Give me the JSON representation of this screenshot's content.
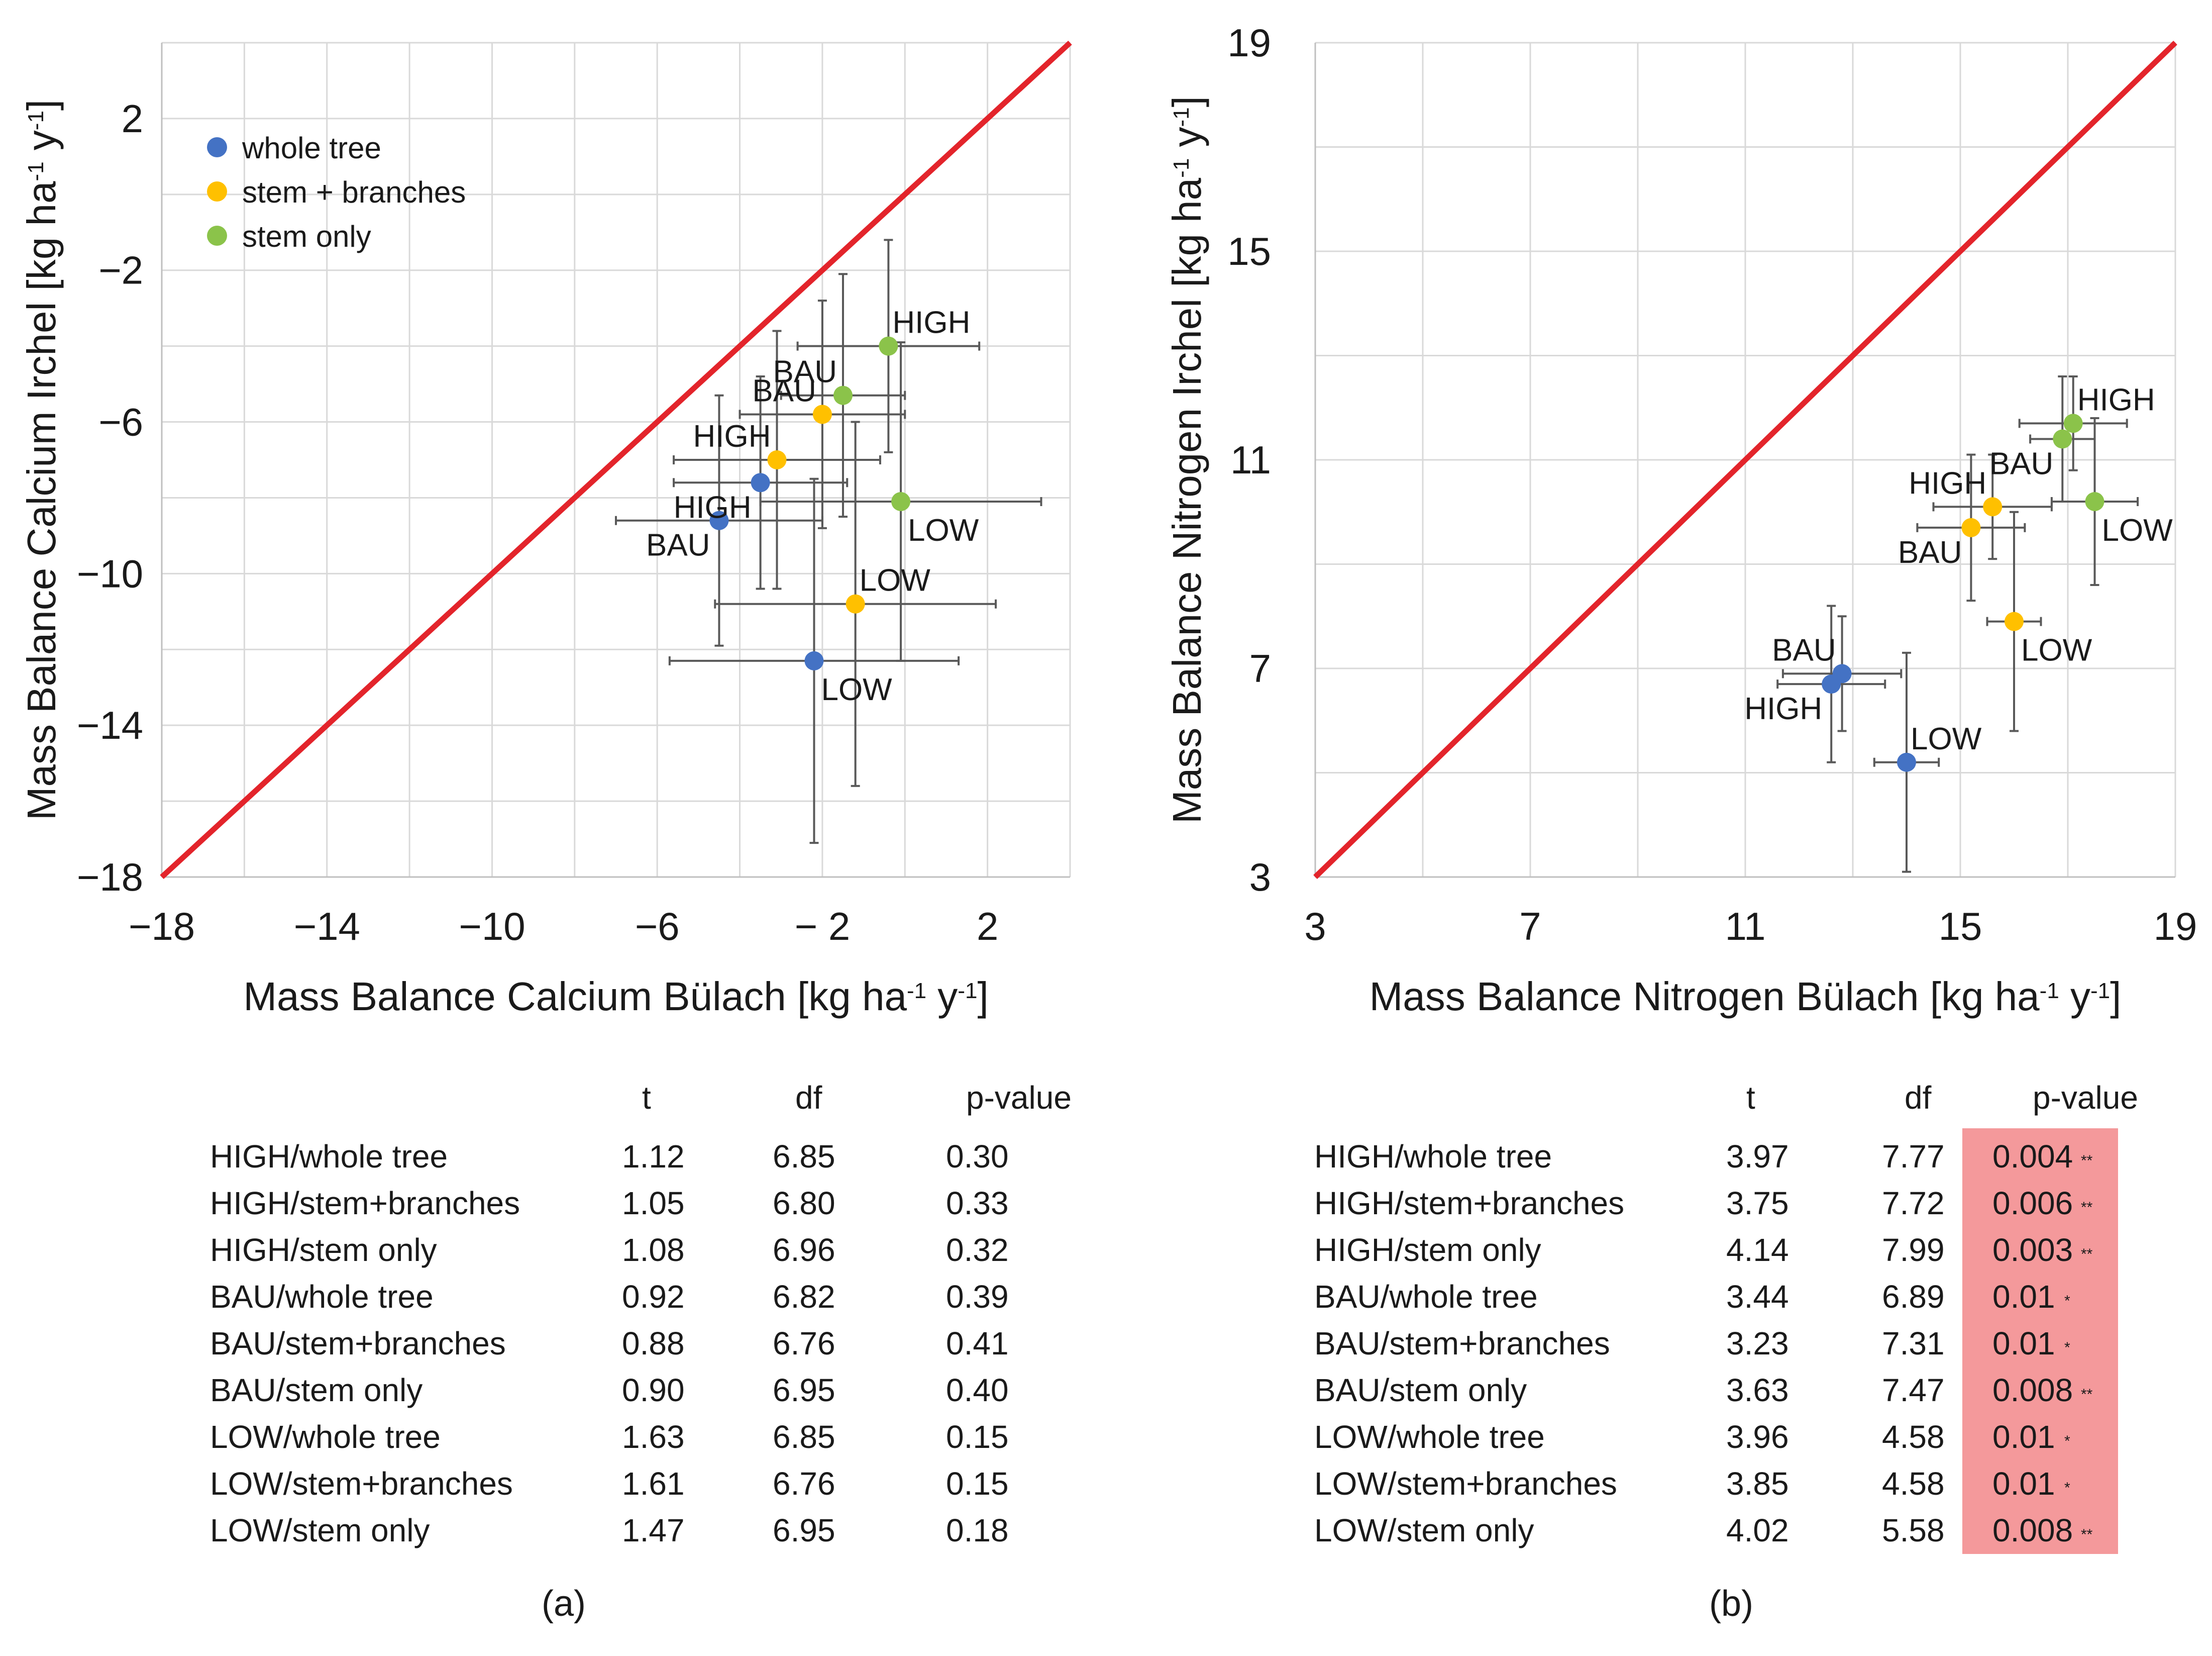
{
  "chart_data": [
    {
      "type": "scatter",
      "panel": "(a)",
      "title": "",
      "xlabel": "Mass Balance Calcium Bülach [kg ha-1 y-1]",
      "ylabel": "Mass Balance Calcium Irchel [kg ha-1 y-1]",
      "xlabel_parts": [
        "Mass Balance Calcium Bülach [kg ha",
        "-1",
        " y",
        "-1",
        "]"
      ],
      "ylabel_parts": [
        "Mass Balance Calcium Irchel [kg ha",
        "-1",
        " y",
        "-1",
        "]"
      ],
      "xlim": [
        -18,
        4
      ],
      "ylim": [
        -18,
        4
      ],
      "xticks": [
        -18,
        -14,
        -10,
        -6,
        -2,
        2
      ],
      "xtick_labels": [
        "−18",
        "−14",
        "−10",
        "−6",
        "− 2",
        "2"
      ],
      "yticks": [
        -18,
        -14,
        -10,
        -6,
        -2,
        2
      ],
      "ytick_labels": [
        "−18",
        "−14",
        "−10",
        "−6",
        "−2",
        "2"
      ],
      "grid": true,
      "reference_line": "1:1 line",
      "legend": {
        "position": "top-left",
        "entries": [
          {
            "label": "whole tree",
            "color": "#4472c4"
          },
          {
            "label": "stem + branches",
            "color": "#ffc000"
          },
          {
            "label": "stem only",
            "color": "#8bc34a"
          }
        ]
      },
      "series": [
        {
          "name": "whole tree",
          "color": "#4472c4",
          "points": [
            {
              "label": "BAU",
              "x": -4.5,
              "y": -8.6,
              "xerr": 2.5,
              "yerr": 3.3,
              "label_pos": "below-left"
            },
            {
              "label": "HIGH",
              "x": -3.5,
              "y": -7.6,
              "xerr": 2.1,
              "yerr": 2.8,
              "label_pos": "below-left"
            },
            {
              "label": "LOW",
              "x": -2.2,
              "y": -12.3,
              "xerr": 3.5,
              "yerr": 4.8,
              "label_pos": "below-right"
            }
          ]
        },
        {
          "name": "stem + branches",
          "color": "#ffc000",
          "points": [
            {
              "label": "HIGH",
              "x": -3.1,
              "y": -7.0,
              "xerr": 2.5,
              "yerr": 3.4,
              "label_pos": "above-left"
            },
            {
              "label": "BAU",
              "x": -2.0,
              "y": -5.8,
              "xerr": 2.0,
              "yerr": 3.0,
              "label_pos": "above-left"
            },
            {
              "label": "LOW",
              "x": -1.2,
              "y": -10.8,
              "xerr": 3.4,
              "yerr": 4.8,
              "label_pos": "above-right"
            }
          ]
        },
        {
          "name": "stem only",
          "color": "#8bc34a",
          "points": [
            {
              "label": "BAU",
              "x": -1.5,
              "y": -5.3,
              "xerr": 1.5,
              "yerr": 3.2,
              "label_pos": "above-left"
            },
            {
              "label": "HIGH",
              "x": -0.4,
              "y": -4.0,
              "xerr": 2.2,
              "yerr": 2.8,
              "label_pos": "above-right"
            },
            {
              "label": "LOW",
              "x": -0.1,
              "y": -8.1,
              "xerr": 3.4,
              "yerr": 4.2,
              "label_pos": "below-right"
            }
          ]
        }
      ]
    },
    {
      "type": "scatter",
      "panel": "(b)",
      "title": "",
      "xlabel": "Mass Balance Nitrogen Bülach [kg ha-1 y-1]",
      "ylabel": "Mass Balance Nitrogen Irchel [kg ha-1 y-1]",
      "xlabel_parts": [
        "Mass Balance Nitrogen Bülach [kg ha",
        "-1",
        " y",
        "-1",
        "]"
      ],
      "ylabel_parts": [
        "Mass Balance Nitrogen Irchel [kg ha",
        "-1",
        " y",
        "-1",
        "]"
      ],
      "xlim": [
        3,
        19
      ],
      "ylim": [
        3,
        19
      ],
      "xticks": [
        3,
        7,
        11,
        15,
        19
      ],
      "xtick_labels": [
        "3",
        "7",
        "11",
        "15",
        "19"
      ],
      "yticks": [
        3,
        7,
        11,
        15,
        19
      ],
      "ytick_labels": [
        "3",
        "7",
        "11",
        "15",
        "19"
      ],
      "grid": true,
      "reference_line": "1:1 line",
      "series": [
        {
          "name": "whole tree",
          "color": "#4472c4",
          "points": [
            {
              "label": "BAU",
              "x": 12.8,
              "y": 6.9,
              "xerr": 1.1,
              "yerr": 1.1,
              "label_pos": "above-left"
            },
            {
              "label": "HIGH",
              "x": 12.6,
              "y": 6.7,
              "xerr": 1.0,
              "yerr": 1.5,
              "label_pos": "below-left"
            },
            {
              "label": "LOW",
              "x": 14.0,
              "y": 5.2,
              "xerr": 0.6,
              "yerr": 2.1,
              "label_pos": "above-right"
            }
          ]
        },
        {
          "name": "stem + branches",
          "color": "#ffc000",
          "points": [
            {
              "label": "HIGH",
              "x": 15.6,
              "y": 10.1,
              "xerr": 1.1,
              "yerr": 1.0,
              "label_pos": "above-left"
            },
            {
              "label": "BAU",
              "x": 15.2,
              "y": 9.7,
              "xerr": 1.0,
              "yerr": 1.4,
              "label_pos": "below-left"
            },
            {
              "label": "LOW",
              "x": 16.0,
              "y": 7.9,
              "xerr": 0.5,
              "yerr": 2.1,
              "label_pos": "below-right"
            }
          ]
        },
        {
          "name": "stem only",
          "color": "#8bc34a",
          "points": [
            {
              "label": "BAU",
              "x": 16.9,
              "y": 11.4,
              "xerr": 0.6,
              "yerr": 1.2,
              "label_pos": "below-left"
            },
            {
              "label": "HIGH",
              "x": 17.1,
              "y": 11.7,
              "xerr": 1.0,
              "yerr": 0.9,
              "label_pos": "above-right"
            },
            {
              "label": "LOW",
              "x": 17.5,
              "y": 10.2,
              "xerr": 0.8,
              "yerr": 1.6,
              "label_pos": "below-right"
            }
          ]
        }
      ]
    }
  ],
  "tables": [
    {
      "panel_label": "(a)",
      "headers": {
        "t": "t",
        "df": "df",
        "p": "p-value"
      },
      "rows": [
        {
          "label": "HIGH/whole tree",
          "t": "1.12",
          "df": "6.85",
          "p": "0.30",
          "sig": ""
        },
        {
          "label": "HIGH/stem+branches",
          "t": "1.05",
          "df": "6.80",
          "p": "0.33",
          "sig": ""
        },
        {
          "label": "HIGH/stem only",
          "t": "1.08",
          "df": "6.96",
          "p": "0.32",
          "sig": ""
        },
        {
          "label": "BAU/whole tree",
          "t": "0.92",
          "df": "6.82",
          "p": "0.39",
          "sig": ""
        },
        {
          "label": "BAU/stem+branches",
          "t": "0.88",
          "df": "6.76",
          "p": "0.41",
          "sig": ""
        },
        {
          "label": "BAU/stem only",
          "t": "0.90",
          "df": "6.95",
          "p": "0.40",
          "sig": ""
        },
        {
          "label": "LOW/whole tree",
          "t": "1.63",
          "df": "6.85",
          "p": "0.15",
          "sig": ""
        },
        {
          "label": "LOW/stem+branches",
          "t": "1.61",
          "df": "6.76",
          "p": "0.15",
          "sig": ""
        },
        {
          "label": "LOW/stem only",
          "t": "1.47",
          "df": "6.95",
          "p": "0.18",
          "sig": ""
        }
      ]
    },
    {
      "panel_label": "(b)",
      "headers": {
        "t": "t",
        "df": "df",
        "p": "p-value"
      },
      "highlight_color": "#f4999b",
      "rows": [
        {
          "label": "HIGH/whole tree",
          "t": "3.97",
          "df": "7.77",
          "p": "0.004",
          "sig": "**"
        },
        {
          "label": "HIGH/stem+branches",
          "t": "3.75",
          "df": "7.72",
          "p": "0.006",
          "sig": "**"
        },
        {
          "label": "HIGH/stem only",
          "t": "4.14",
          "df": "7.99",
          "p": "0.003",
          "sig": "**"
        },
        {
          "label": "BAU/whole tree",
          "t": "3.44",
          "df": "6.89",
          "p": "0.01",
          "sig": "*"
        },
        {
          "label": "BAU/stem+branches",
          "t": "3.23",
          "df": "7.31",
          "p": "0.01",
          "sig": "*"
        },
        {
          "label": "BAU/stem only",
          "t": "3.63",
          "df": "7.47",
          "p": "0.008",
          "sig": "**"
        },
        {
          "label": "LOW/whole tree",
          "t": "3.96",
          "df": "4.58",
          "p": "0.01",
          "sig": "*"
        },
        {
          "label": "LOW/stem+branches",
          "t": "3.85",
          "df": "4.58",
          "p": "0.01",
          "sig": "*"
        },
        {
          "label": "LOW/stem only",
          "t": "4.02",
          "df": "5.58",
          "p": "0.008",
          "sig": "**"
        }
      ]
    }
  ]
}
